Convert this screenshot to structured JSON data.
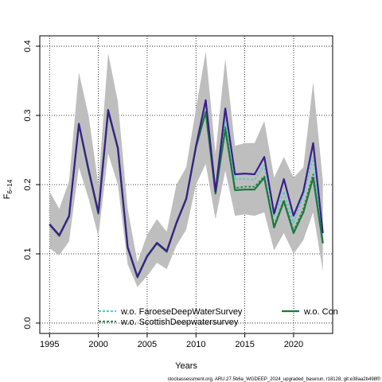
{
  "chart_data": {
    "type": "line",
    "xlabel": "Years",
    "ylabel": "F",
    "ylabel_subscript": "6–14",
    "xlim": [
      1994,
      2024
    ],
    "ylim": [
      -0.015,
      0.415
    ],
    "xticks": [
      1995,
      2000,
      2005,
      2010,
      2015,
      2020
    ],
    "yticks": [
      0.0,
      0.1,
      0.2,
      0.3,
      0.4
    ],
    "ytick_labels": [
      "0.0",
      "0.1",
      "0.2",
      "0.3",
      "0.4"
    ],
    "grid": true,
    "legend_placement": "bottom",
    "footer": "stockassessment.org, ARU.27.5b6a_WGDEEP_2024_upgraded_baserun, r18128, git:e38aa2b498f0",
    "x": [
      1995,
      1996,
      1997,
      1998,
      1999,
      2000,
      2001,
      2002,
      2003,
      2004,
      2005,
      2006,
      2007,
      2008,
      2009,
      2010,
      2011,
      2012,
      2013,
      2014,
      2015,
      2016,
      2017,
      2018,
      2019,
      2020,
      2021,
      2022,
      2023
    ],
    "band": {
      "color": "#bebebe",
      "lower": [
        0.108,
        0.098,
        0.118,
        0.225,
        0.18,
        0.125,
        0.245,
        0.2,
        0.085,
        0.052,
        0.068,
        0.087,
        0.078,
        0.112,
        0.135,
        0.2,
        0.23,
        0.15,
        0.22,
        0.155,
        0.157,
        0.155,
        0.16,
        0.105,
        0.13,
        0.1,
        0.12,
        0.16,
        0.075
      ],
      "upper": [
        0.19,
        0.165,
        0.205,
        0.362,
        0.3,
        0.2,
        0.39,
        0.32,
        0.165,
        0.088,
        0.128,
        0.15,
        0.132,
        0.2,
        0.225,
        0.31,
        0.392,
        0.245,
        0.382,
        0.256,
        0.26,
        0.26,
        0.292,
        0.21,
        0.24,
        0.21,
        0.225,
        0.348,
        0.205
      ]
    },
    "series": [
      {
        "name": "w.o. FaroeseDeepWaterSurvey",
        "color": "#5ec8d2",
        "dash": "3,2",
        "values": [
          0.143,
          0.127,
          0.155,
          0.288,
          0.222,
          0.16,
          0.308,
          0.253,
          0.11,
          0.068,
          0.097,
          0.116,
          0.104,
          0.145,
          0.18,
          0.255,
          0.318,
          0.192,
          0.296,
          0.208,
          0.208,
          0.207,
          0.228,
          0.155,
          0.19,
          0.145,
          0.185,
          0.24,
          0.118
        ]
      },
      {
        "name": "w.o. ScottishDeepwatersurvey",
        "color": "#2e8b57",
        "dash": "3,2",
        "values": [
          0.142,
          0.126,
          0.154,
          0.287,
          0.22,
          0.158,
          0.306,
          0.252,
          0.109,
          0.066,
          0.096,
          0.115,
          0.103,
          0.144,
          0.179,
          0.254,
          0.305,
          0.187,
          0.283,
          0.195,
          0.197,
          0.197,
          0.212,
          0.14,
          0.178,
          0.133,
          0.165,
          0.215,
          0.117
        ]
      },
      {
        "name": "w.o. Con",
        "color": "#1b7a3e",
        "dash": "",
        "values": [
          0.142,
          0.126,
          0.154,
          0.287,
          0.22,
          0.158,
          0.306,
          0.252,
          0.109,
          0.066,
          0.096,
          0.115,
          0.103,
          0.144,
          0.179,
          0.254,
          0.305,
          0.187,
          0.28,
          0.192,
          0.193,
          0.193,
          0.21,
          0.138,
          0.176,
          0.13,
          0.16,
          0.21,
          0.115
        ]
      },
      {
        "name": "",
        "color": "#3a1f8a",
        "dash": "",
        "values": [
          0.143,
          0.127,
          0.155,
          0.288,
          0.222,
          0.16,
          0.308,
          0.253,
          0.11,
          0.067,
          0.097,
          0.116,
          0.104,
          0.145,
          0.18,
          0.256,
          0.322,
          0.19,
          0.31,
          0.215,
          0.216,
          0.215,
          0.24,
          0.158,
          0.208,
          0.155,
          0.19,
          0.26,
          0.13
        ]
      }
    ],
    "legend": [
      {
        "label": "w.o. FaroeseDeepWaterSurvey",
        "color": "#5ec8d2",
        "dash": "3,2"
      },
      {
        "label": "w.o. ScottishDeepwatersurvey",
        "color": "#2e8b57",
        "dash": "3,2"
      },
      {
        "label": "w.o. Con",
        "color": "#1b7a3e",
        "dash": ""
      }
    ]
  }
}
